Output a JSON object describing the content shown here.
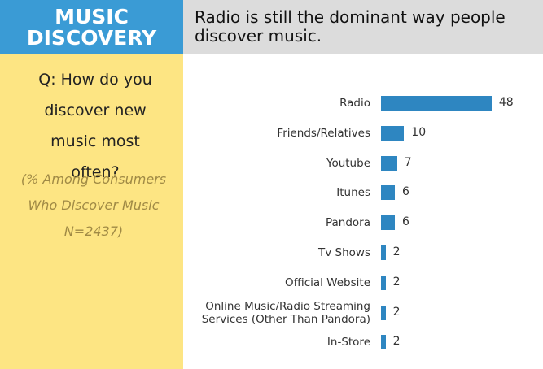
{
  "section_label": "MUSIC DISCOVERY",
  "question": "Q:  How do you discover new music most often?",
  "note": "(% Among Consumers Who Discover Music N=2437)",
  "chart_data": {
    "type": "bar",
    "orientation": "horizontal",
    "title": "Radio is still the dominant way people discover music.",
    "categories": [
      "Radio",
      "Friends/Relatives",
      "Youtube",
      "Itunes",
      "Pandora",
      "Tv Shows",
      "Official Website",
      "Online Music/Radio Streaming Services (Other Than Pandora)",
      "In-Store"
    ],
    "values": [
      48,
      10,
      7,
      6,
      6,
      2,
      2,
      2,
      2
    ],
    "color": "#2e86c1"
  }
}
